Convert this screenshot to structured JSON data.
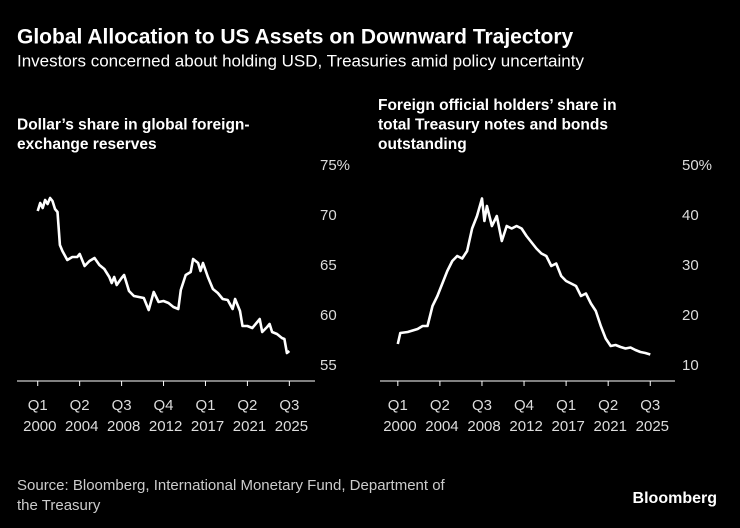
{
  "header": {
    "title": "Global Allocation to US Assets on Downward Trajectory",
    "subtitle": "Investors concerned about holding USD, Treasuries amid policy uncertainty"
  },
  "chart_data": [
    {
      "type": "line",
      "title": [
        "Dollar’s share in global foreign-",
        "exchange reserves"
      ],
      "color": "#ffffff",
      "x": [
        2000,
        2000.25,
        2000.5,
        2000.75,
        2001,
        2001.25,
        2001.5,
        2001.75,
        2002,
        2002.25,
        2002.5,
        2003,
        2003.5,
        2004,
        2004.25,
        2004.75,
        2005.25,
        2005.75,
        2006.25,
        2006.75,
        2007.25,
        2007.5,
        2007.75,
        2008,
        2008.5,
        2008.75,
        2009.25,
        2009.75,
        2010.25,
        2010.75,
        2011.25,
        2011.75,
        2012.25,
        2012.75,
        2013.25,
        2013.75,
        2014.25,
        2014.5,
        2015,
        2015.5,
        2015.75,
        2016.25,
        2016.5,
        2016.75,
        2017.25,
        2017.75,
        2018.25,
        2018.75,
        2019.25,
        2019.75,
        2020,
        2020.5,
        2020.75,
        2021.25,
        2021.75,
        2022.25,
        2022.5,
        2022.75,
        2023.25,
        2023.5,
        2023.75,
        2024.25,
        2024.75,
        2025,
        2025.25,
        2025.5
      ],
      "values": [
        70.5,
        71.3,
        70.8,
        71.6,
        71.2,
        71.8,
        71.5,
        70.7,
        70.4,
        67.1,
        66.5,
        65.6,
        65.9,
        65.9,
        66.2,
        65.0,
        65.5,
        65.8,
        65.1,
        64.7,
        63.9,
        63.3,
        63.9,
        63.1,
        63.8,
        64.1,
        62.5,
        62.0,
        61.9,
        61.8,
        60.6,
        62.4,
        61.4,
        61.5,
        61.3,
        60.9,
        60.7,
        62.6,
        64.1,
        64.4,
        65.7,
        65.3,
        64.5,
        65.3,
        63.9,
        62.7,
        62.3,
        61.7,
        61.6,
        60.7,
        61.7,
        60.5,
        59.0,
        59.0,
        58.8,
        59.4,
        59.7,
        58.4,
        58.9,
        59.2,
        58.4,
        58.2,
        57.8,
        57.7,
        56.3,
        56.5
      ],
      "xlim": [
        1997.9,
        2028.1
      ],
      "ylim": [
        53.5,
        75
      ],
      "yticks": [
        {
          "value": 75,
          "label": "75%"
        },
        70,
        65,
        60,
        55
      ],
      "xticks": [
        {
          "value": 2000,
          "label": "Q1 2000"
        },
        {
          "value": 2004.25,
          "label": "Q2 2004"
        },
        {
          "value": 2008.5,
          "label": "Q3 2008"
        },
        {
          "value": 2012.75,
          "label": "Q4 2012"
        },
        {
          "value": 2017,
          "label": "Q1 2017"
        },
        {
          "value": 2021.25,
          "label": "Q2 2021"
        },
        {
          "value": 2025.5,
          "label": "Q3 2025"
        }
      ]
    },
    {
      "type": "line",
      "title": [
        "Foreign official holders’ share in",
        "total Treasury notes and bonds",
        "outstanding"
      ],
      "color": "#ffffff",
      "x": [
        2000,
        2000.25,
        2001,
        2002,
        2002.5,
        2003,
        2003.5,
        2004,
        2005,
        2005.5,
        2006,
        2006.5,
        2007,
        2007.5,
        2008,
        2008.5,
        2008.75,
        2009,
        2009.5,
        2010,
        2010.5,
        2011,
        2011.5,
        2012,
        2012.5,
        2013,
        2014,
        2014.5,
        2015,
        2015.5,
        2016,
        2016.5,
        2017,
        2017.5,
        2018,
        2018.5,
        2019,
        2019.5,
        2020,
        2020.5,
        2021,
        2021.5,
        2022,
        2022.5,
        2023,
        2023.5,
        2024,
        2024.5,
        2025,
        2025.5
      ],
      "values": [
        14.4,
        16.6,
        16.8,
        17.4,
        18.0,
        18.0,
        22.0,
        24.0,
        29.0,
        31.0,
        32.0,
        31.5,
        33.0,
        37.5,
        40.0,
        43.5,
        39.0,
        42.0,
        38.0,
        40.0,
        35.0,
        38.0,
        37.5,
        38.0,
        37.5,
        36.0,
        33.5,
        32.5,
        32.0,
        30.0,
        30.5,
        28.0,
        27.0,
        26.5,
        26.0,
        24.0,
        24.5,
        22.5,
        21.0,
        18.0,
        15.5,
        14.0,
        14.2,
        13.8,
        13.5,
        13.7,
        13.2,
        12.8,
        12.6,
        12.3
      ],
      "xlim": [
        1998.2,
        2028.0
      ],
      "ylim": [
        7,
        50
      ],
      "yticks": [
        {
          "value": 50,
          "label": "50%"
        },
        40,
        30,
        20,
        10
      ],
      "xticks": [
        {
          "value": 2000,
          "label": "Q1 2000"
        },
        {
          "value": 2004.25,
          "label": "Q2 2004"
        },
        {
          "value": 2008.5,
          "label": "Q3 2008"
        },
        {
          "value": 2012.75,
          "label": "Q4 2012"
        },
        {
          "value": 2017,
          "label": "Q1 2017"
        },
        {
          "value": 2021.25,
          "label": "Q2 2021"
        },
        {
          "value": 2025.5,
          "label": "Q3 2025"
        }
      ]
    }
  ],
  "source": [
    "Source: Bloomberg, International Monetary Fund, Department of",
    "the Treasury"
  ],
  "logo": "Bloomberg"
}
